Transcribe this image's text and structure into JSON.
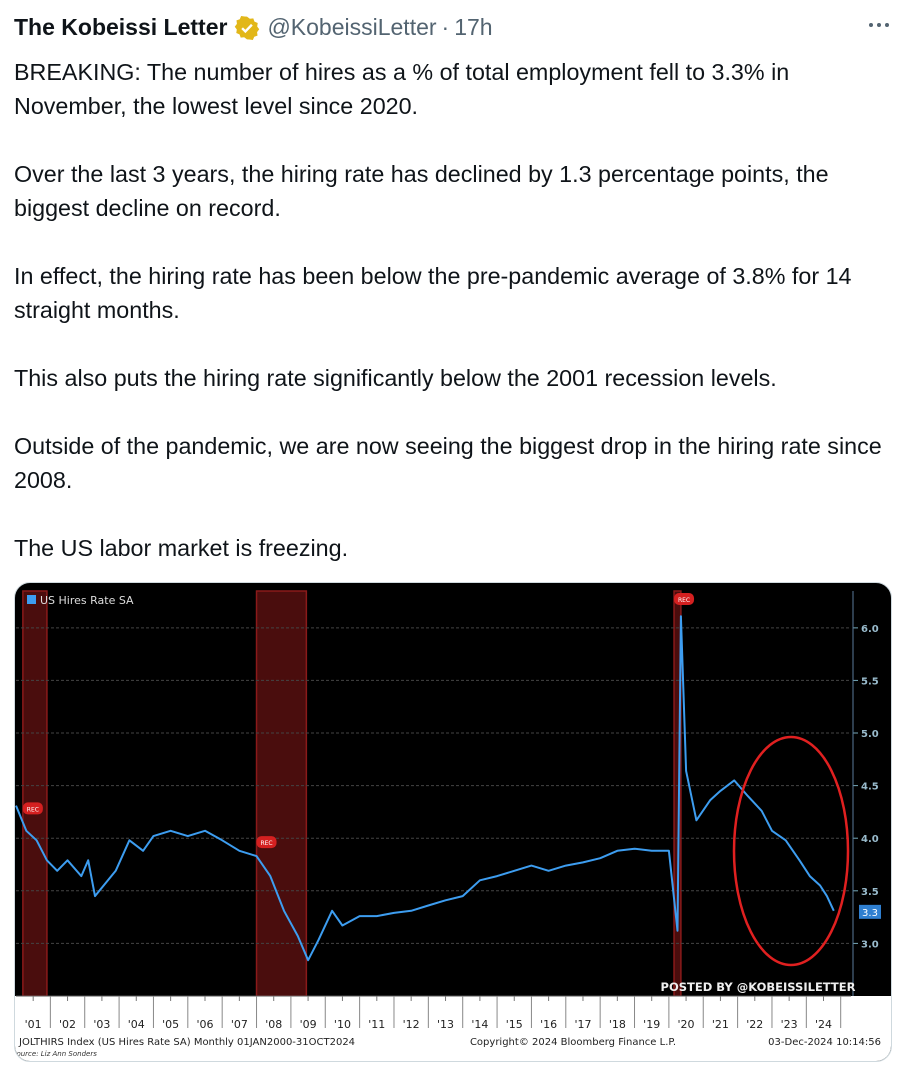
{
  "tweet": {
    "name": "The Kobeissi Letter",
    "handle": "@KobeissiLetter",
    "separator": "·",
    "time": "17h",
    "paragraphs": [
      "BREAKING: The number of hires as a % of total employment fell to 3.3% in November, the lowest level since 2020.",
      "Over the last 3 years, the hiring rate has declined by 1.3 percentage points, the biggest decline on record.",
      "In effect, the hiring rate has been below the pre-pandemic average of 3.8% for 14 straight months.",
      "This also puts the hiring rate significantly below the 2001 recession levels.",
      "Outside of the pandemic, we are now seeing the biggest drop in the hiring rate since 2008.",
      "The US labor market is freezing."
    ]
  },
  "chart_data": {
    "type": "line",
    "x": [
      2001.0,
      2001.3,
      2001.6,
      2001.9,
      2002.2,
      2002.5,
      2002.9,
      2003.1,
      2003.3,
      2003.9,
      2004.3,
      2004.7,
      2005.0,
      2005.5,
      2006.0,
      2006.5,
      2007.0,
      2007.5,
      2008.0,
      2008.4,
      2008.8,
      2009.2,
      2009.5,
      2009.8,
      2010.2,
      2010.5,
      2011.0,
      2011.5,
      2012.0,
      2012.5,
      2013.0,
      2013.5,
      2014.0,
      2014.5,
      2015.0,
      2015.5,
      2016.0,
      2016.5,
      2017.0,
      2017.5,
      2018.0,
      2018.5,
      2019.0,
      2019.5,
      2020.0,
      2020.25,
      2020.35,
      2020.5,
      2020.8,
      2021.2,
      2021.5,
      2021.9,
      2022.3,
      2022.7,
      2023.0,
      2023.4,
      2023.8,
      2024.1,
      2024.4,
      2024.6,
      2024.8
    ],
    "series": [
      {
        "name": "US Hires Rate SA",
        "color": "#3d9df0",
        "values": [
          4.31,
          4.07,
          3.98,
          3.79,
          3.69,
          3.79,
          3.64,
          3.79,
          3.45,
          3.69,
          3.98,
          3.88,
          4.02,
          4.07,
          4.02,
          4.07,
          3.98,
          3.88,
          3.83,
          3.64,
          3.31,
          3.07,
          2.84,
          3.03,
          3.31,
          3.17,
          3.26,
          3.26,
          3.29,
          3.31,
          3.36,
          3.41,
          3.45,
          3.6,
          3.64,
          3.69,
          3.74,
          3.69,
          3.74,
          3.77,
          3.81,
          3.88,
          3.9,
          3.88,
          3.88,
          3.12,
          6.11,
          4.64,
          4.17,
          4.36,
          4.45,
          4.55,
          4.4,
          4.26,
          4.07,
          3.98,
          3.79,
          3.64,
          3.55,
          3.45,
          3.31
        ]
      }
    ],
    "xlim": [
      2001,
      2025.3
    ],
    "ylim": [
      2.5,
      6.35
    ],
    "xticks": [
      {
        "value": 2001.5,
        "label": "'01"
      },
      {
        "value": 2002.5,
        "label": "'02"
      },
      {
        "value": 2003.5,
        "label": "'03"
      },
      {
        "value": 2004.5,
        "label": "'04"
      },
      {
        "value": 2005.5,
        "label": "'05"
      },
      {
        "value": 2006.5,
        "label": "'06"
      },
      {
        "value": 2007.5,
        "label": "'07"
      },
      {
        "value": 2008.5,
        "label": "'08"
      },
      {
        "value": 2009.5,
        "label": "'09"
      },
      {
        "value": 2010.5,
        "label": "'10"
      },
      {
        "value": 2011.5,
        "label": "'11"
      },
      {
        "value": 2012.5,
        "label": "'12"
      },
      {
        "value": 2013.5,
        "label": "'13"
      },
      {
        "value": 2014.5,
        "label": "'14"
      },
      {
        "value": 2015.5,
        "label": "'15"
      },
      {
        "value": 2016.5,
        "label": "'16"
      },
      {
        "value": 2017.5,
        "label": "'17"
      },
      {
        "value": 2018.5,
        "label": "'18"
      },
      {
        "value": 2019.5,
        "label": "'19"
      },
      {
        "value": 2020.5,
        "label": "'20"
      },
      {
        "value": 2021.5,
        "label": "'21"
      },
      {
        "value": 2022.5,
        "label": "'22"
      },
      {
        "value": 2023.5,
        "label": "'23"
      },
      {
        "value": 2024.5,
        "label": "'24"
      }
    ],
    "yticks": [
      {
        "value": 3,
        "label": "3.0"
      },
      {
        "value": 3.5,
        "label": "3.5"
      },
      {
        "value": 4,
        "label": "4.0"
      },
      {
        "value": 4.5,
        "label": "4.5"
      },
      {
        "value": 5,
        "label": "5.0"
      },
      {
        "value": 5.5,
        "label": "5.5"
      },
      {
        "value": 6,
        "label": "6.0"
      }
    ],
    "grid": true,
    "recessions": [
      [
        2001.2,
        2001.9
      ],
      [
        2008.0,
        2009.45
      ],
      [
        2020.15,
        2020.35
      ]
    ],
    "recession_label": "REC",
    "current_value": {
      "value": 3.3,
      "label": "3.3"
    },
    "annotation": "POSTED BY @KOBEISSILETTER",
    "footer": {
      "index": "JOLTHIRS Index (US Hires Rate SA)  Monthly 01JAN2000-31OCT2024",
      "copyright": "Copyright© 2024 Bloomberg Finance L.P.",
      "date": "03-Dec-2024 10:14:56",
      "source": "Source: Liz Ann Sonders"
    }
  }
}
